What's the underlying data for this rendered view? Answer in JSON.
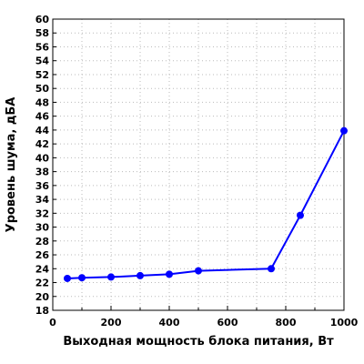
{
  "chart_data": {
    "type": "line",
    "xlabel": "Выходная мощность блока питания, Вт",
    "ylabel": "Уровень шума, дБА",
    "xlim": [
      0,
      1000
    ],
    "ylim": [
      18,
      60
    ],
    "x_ticks": [
      0,
      200,
      400,
      600,
      800,
      1000
    ],
    "y_ticks": [
      18,
      20,
      22,
      24,
      26,
      28,
      30,
      32,
      34,
      36,
      38,
      40,
      42,
      44,
      46,
      48,
      50,
      52,
      54,
      56,
      58,
      60
    ],
    "grid": true,
    "legend": "none",
    "series": [
      {
        "color": "#0000ff",
        "x": [
          50,
          100,
          200,
          300,
          400,
          500,
          750,
          850,
          1000
        ],
        "y": [
          22.6,
          22.7,
          22.8,
          23.0,
          23.2,
          23.7,
          24.0,
          31.7,
          43.9
        ]
      }
    ]
  }
}
